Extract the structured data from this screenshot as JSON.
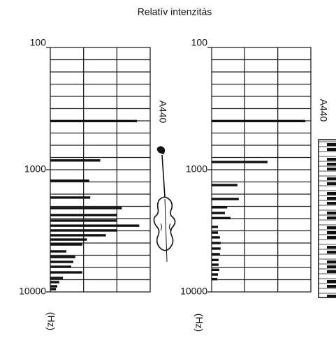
{
  "title": "Relatív intenzitás",
  "chart_data": [
    {
      "type": "bar",
      "orientation": "horizontal",
      "y_label": "(Hz)",
      "annotation": "A440",
      "y": [
        400,
        840,
        1230,
        1690,
        2060,
        2350,
        2610,
        2870,
        3140,
        3440,
        3730,
        4090,
        4660,
        5180,
        5680,
        6230,
        6920,
        7690,
        8320,
        9000,
        9490
      ],
      "values": [
        2.6,
        1.5,
        1.17,
        1.2,
        2.15,
        2.0,
        2.0,
        2.67,
        2.0,
        1.67,
        1.1,
        0.96,
        0.48,
        0.75,
        0.69,
        0.63,
        0.96,
        0.38,
        0.27,
        0.21,
        0.17
      ],
      "color": "#111111",
      "ylim": [
        100,
        10000
      ],
      "yticks": [
        100,
        1000,
        10000
      ],
      "log_y": true,
      "y_inverted": true,
      "xlim": [
        0,
        3
      ],
      "grid": true
    },
    {
      "type": "bar",
      "orientation": "horizontal",
      "y_label": "(Hz)",
      "annotation": "A440",
      "y": [
        400,
        865,
        1336,
        1737,
        2030,
        2260,
        2490,
        2940,
        3270,
        3580,
        3980,
        4420,
        4910,
        5480,
        5990,
        6590,
        7200,
        7860
      ],
      "values": [
        2.83,
        1.69,
        0.78,
        0.82,
        0.47,
        0.4,
        0.57,
        0.19,
        0.19,
        0.25,
        0.27,
        0.27,
        0.25,
        0.21,
        0.21,
        0.23,
        0.19,
        0.17
      ],
      "color": "#111111",
      "ylim": [
        100,
        10000
      ],
      "yticks": [
        100,
        1000,
        10000
      ],
      "log_y": true,
      "y_inverted": true,
      "xlim": [
        0,
        3
      ],
      "grid": true
    }
  ]
}
